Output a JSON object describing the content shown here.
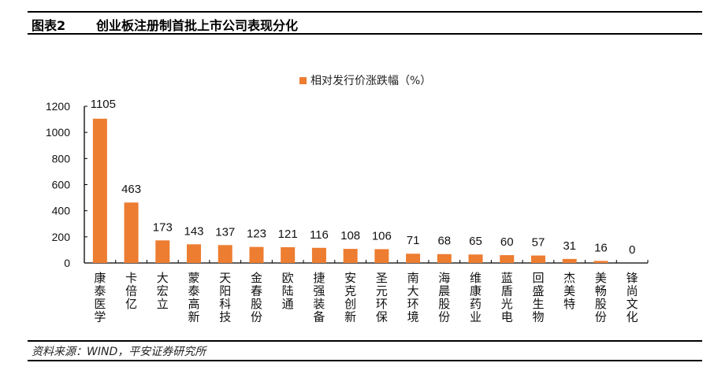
{
  "header": {
    "figure_number": "图表2",
    "title": "创业板注册制首批上市公司表现分化"
  },
  "footer": {
    "source": "资料来源：WIND，平安证券研究所"
  },
  "colors": {
    "bar": "#ED7D31",
    "axis": "#000000",
    "rule": "#000000"
  },
  "chart_data": {
    "type": "bar",
    "title": "创业板注册制首批上市公司表现分化",
    "legend": [
      "相对发行价涨跌幅（%）"
    ],
    "legend_position": "top",
    "xlabel": "",
    "ylabel": "",
    "ylim": [
      0,
      1200
    ],
    "yticks": [
      0,
      200,
      400,
      600,
      800,
      1000,
      1200
    ],
    "grid": false,
    "categories": [
      "康泰医学",
      "卡倍亿",
      "大宏立",
      "蒙泰高新",
      "天阳科技",
      "金春股份",
      "欧陆通",
      "捷强装备",
      "安克创新",
      "圣元环保",
      "南大环境",
      "海晨股份",
      "维康药业",
      "蓝盾光电",
      "回盛生物",
      "杰美特",
      "美畅股份",
      "锋尚文化"
    ],
    "series": [
      {
        "name": "相对发行价涨跌幅（%）",
        "values": [
          1105,
          463,
          173,
          143,
          137,
          123,
          121,
          116,
          108,
          106,
          71,
          68,
          65,
          60,
          57,
          31,
          16,
          0
        ]
      }
    ],
    "data_labels": true
  }
}
